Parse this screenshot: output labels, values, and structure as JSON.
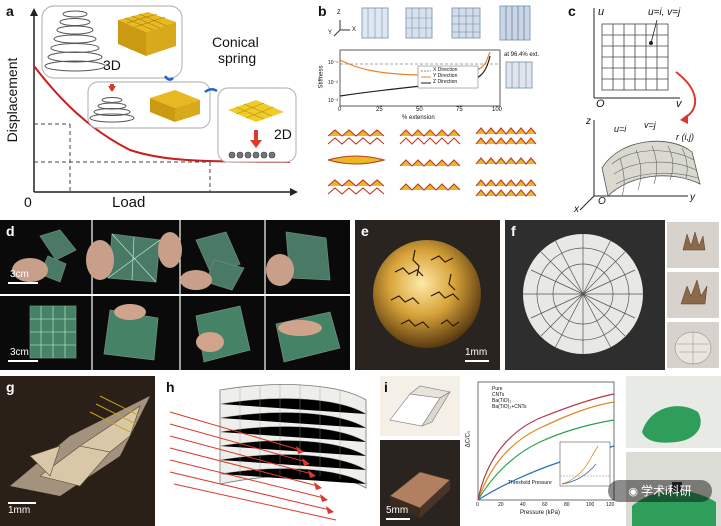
{
  "panels": {
    "a": {
      "label": "a",
      "ylabel": "Displacement",
      "xlabel": "Load",
      "origin": "0",
      "title_line1": "Conical",
      "title_line2": "spring",
      "tag_3d": "3D",
      "tag_2d": "2D"
    },
    "b": {
      "label": "b",
      "ylabel": "Stiffness",
      "xlabel": "% extension",
      "annotation": "at 96.4% ext.",
      "legend": [
        "X Direction",
        "Y Direction",
        "Z Direction"
      ],
      "xticks": [
        "0",
        "25",
        "50",
        "75",
        "100"
      ],
      "yticks": [
        "10⁻¹",
        "10⁻²",
        "10⁻³"
      ],
      "axis_x": "X",
      "axis_y": "Y",
      "axis_z": "Z"
    },
    "c": {
      "label": "c",
      "u_axis": "u",
      "v_axis": "v",
      "origin": "O",
      "grid_label": "u=i, v=j",
      "surf_u": "u=i",
      "surf_v": "v=j",
      "surf_r": "r (i,j)",
      "axis_x": "x",
      "axis_y": "y",
      "axis_z": "z"
    },
    "d": {
      "label": "d",
      "scale_top": "3cm",
      "scale_bottom": "3cm"
    },
    "e": {
      "label": "e",
      "scale": "1mm"
    },
    "f": {
      "label": "f"
    },
    "g": {
      "label": "g",
      "scale": "1mm"
    },
    "h": {
      "label": "h"
    },
    "i": {
      "label": "i",
      "scale": "5mm",
      "xlabel": "Pressure (kPa)",
      "ylabel": "ΔC/C₀",
      "legend": [
        "Pure",
        "CNTs",
        "Ba(TiO)₃",
        "Ba(TiO)₃+CNTs"
      ],
      "inset_label": "Threshold Pressure",
      "xticks": [
        "0",
        "20",
        "40",
        "60",
        "80",
        "100",
        "120"
      ]
    }
  },
  "watermark": "学术i科研",
  "colors": {
    "curve_red": "#c8201e",
    "gold": "#e8b923",
    "dark_bg": "#0a0a0a",
    "arrow_red": "#d93a2b"
  },
  "chart_data": [
    {
      "type": "line",
      "title": "",
      "xlabel": "Load",
      "ylabel": "Displacement",
      "series": [
        {
          "values": [
            1.0,
            0.78,
            0.6,
            0.46,
            0.36,
            0.28,
            0.22,
            0.18,
            0.16,
            0.15,
            0.15
          ]
        }
      ],
      "x": [
        0,
        0.1,
        0.2,
        0.3,
        0.4,
        0.5,
        0.6,
        0.7,
        0.8,
        0.9,
        1.0
      ]
    },
    {
      "type": "line",
      "xlabel": "% extension",
      "ylabel": "Stiffness",
      "x": [
        0,
        10,
        25,
        50,
        75,
        90,
        96,
        100
      ],
      "series": [
        {
          "name": "X Direction",
          "values": [
            0.3,
            0.3,
            0.3,
            0.3,
            0.3,
            0.3,
            0.3,
            0.3
          ]
        },
        {
          "name": "Y Direction",
          "values": [
            0.08,
            0.06,
            0.035,
            0.03,
            0.028,
            0.03,
            0.2,
            1.5
          ]
        },
        {
          "name": "Z Direction",
          "values": [
            0.003,
            0.005,
            0.008,
            0.012,
            0.016,
            0.03,
            0.2,
            1.0
          ]
        }
      ]
    },
    {
      "type": "line",
      "xlabel": "Pressure (kPa)",
      "ylabel": "ΔC/C₀",
      "x": [
        0,
        10,
        20,
        30,
        40,
        60,
        80,
        100,
        120
      ],
      "series": [
        {
          "name": "Pure",
          "values": [
            0,
            0.3,
            0.6,
            0.9,
            1.1,
            1.4,
            1.65,
            1.9,
            2.1
          ]
        },
        {
          "name": "CNTs",
          "values": [
            0,
            0.9,
            1.8,
            2.5,
            3.0,
            3.5,
            3.7,
            3.85,
            3.95
          ]
        },
        {
          "name": "Ba(TiO)₃",
          "values": [
            0,
            0.7,
            1.5,
            2.1,
            2.6,
            3.1,
            3.4,
            3.55,
            3.6
          ]
        },
        {
          "name": "Ba(TiO)₃+CNTs",
          "values": [
            0,
            1.1,
            2.1,
            2.8,
            3.3,
            3.7,
            3.9,
            4.05,
            4.1
          ]
        }
      ]
    }
  ]
}
